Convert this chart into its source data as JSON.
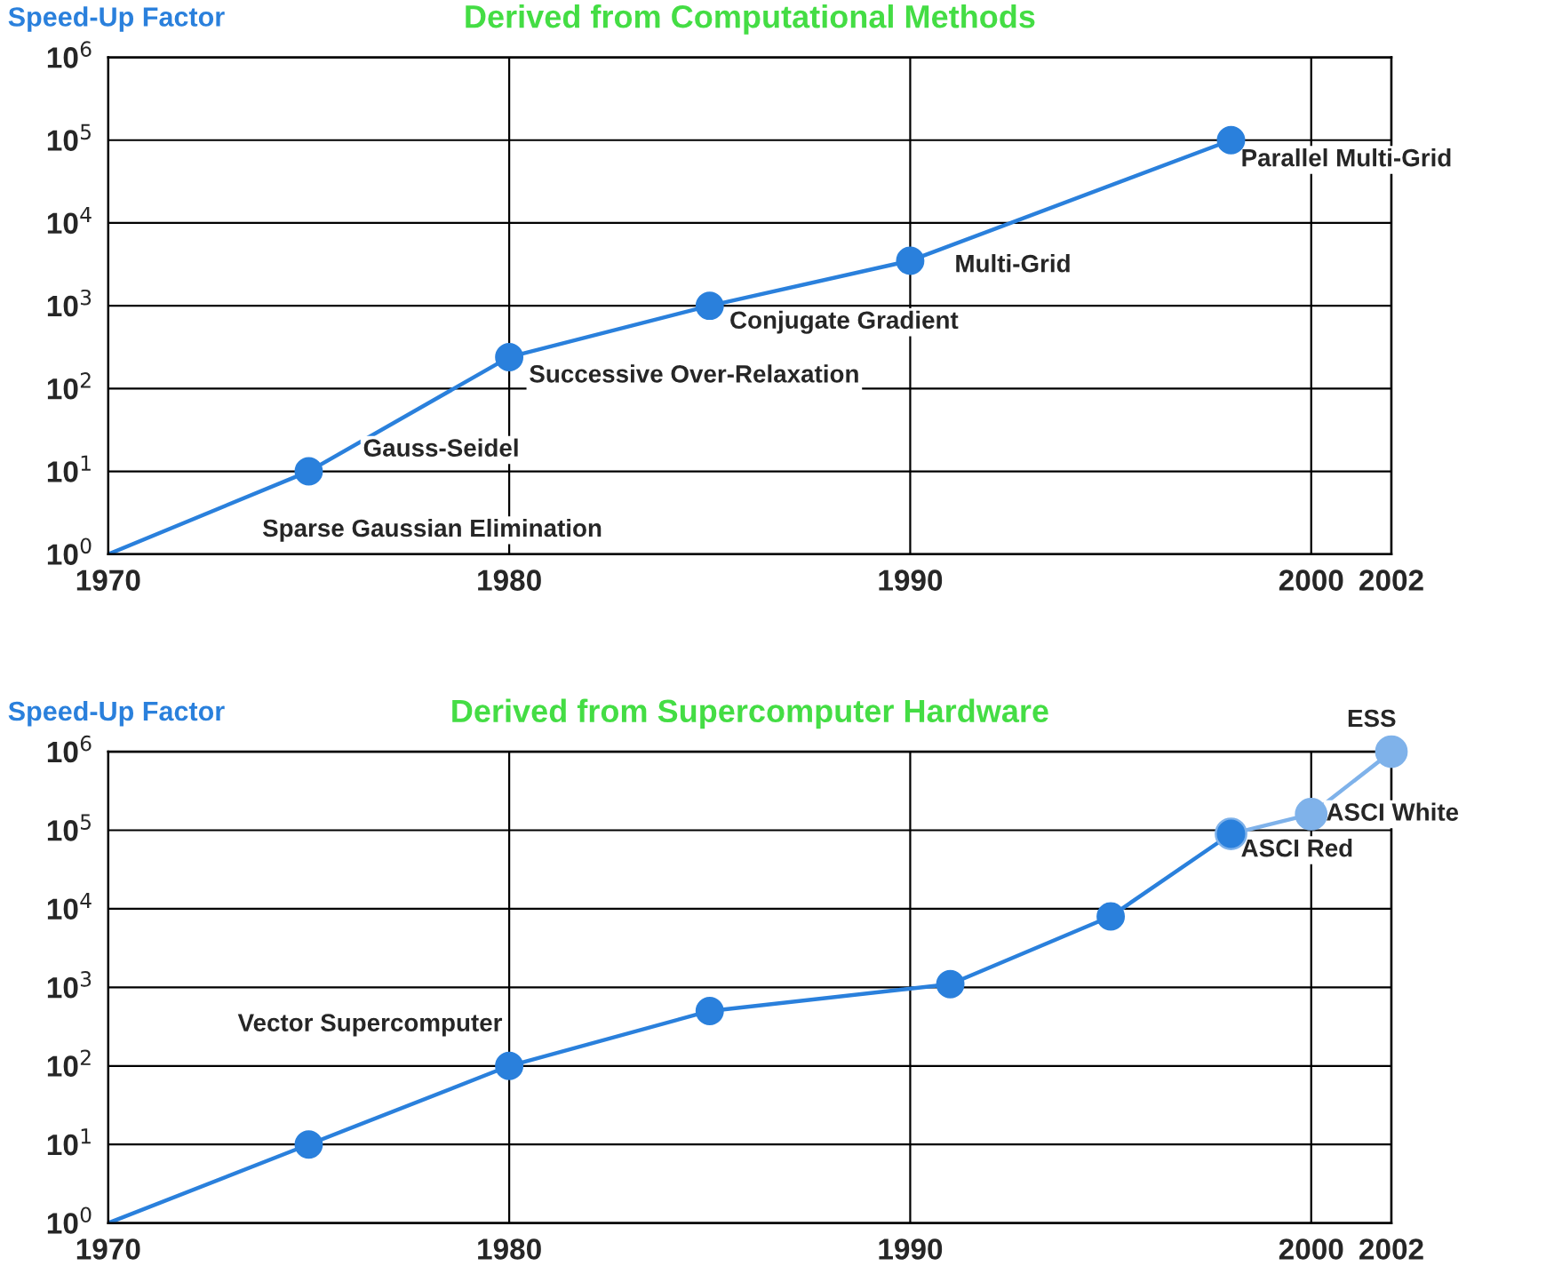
{
  "chart_data": [
    {
      "type": "line",
      "title": "Derived from Computational Methods",
      "ylabel": "Speed-Up Factor",
      "log": true,
      "grid": true,
      "xlim": [
        1970,
        2002
      ],
      "xticks": [
        1970,
        1980,
        1990,
        2000,
        2002
      ],
      "ylim": [
        1,
        1000000
      ],
      "yticks": [
        {
          "value": 1,
          "label": "10$^{0}$"
        },
        {
          "value": 10,
          "label": "10$^{1}$"
        },
        {
          "value": 100,
          "label": "10$^{2}$"
        },
        {
          "value": 1000,
          "label": "10$^{3}$"
        },
        {
          "value": 10000,
          "label": "10$^{4}$"
        },
        {
          "value": 100000,
          "label": "10$^{5}$"
        },
        {
          "value": 1000000,
          "label": "10$^{6}$"
        }
      ],
      "series": [
        {
          "color": "#2a80dc",
          "x": [
            1970,
            1975
          ],
          "values": [
            1,
            10
          ]
        },
        {
          "color": "#2a80dc",
          "marker": "circle",
          "x": [
            1975,
            1980,
            1985,
            1990,
            1998
          ],
          "values": [
            10,
            240,
            1000,
            3500,
            100000
          ]
        }
      ],
      "annotations": [
        "Sparse Gaussian Elimination",
        {
          "text": "Gauss-Seidel",
          "x": 1975,
          "y": 10
        },
        {
          "text": "Successive Over-Relaxation",
          "x": 1980,
          "y": 240
        },
        {
          "text": "Conjugate Gradient",
          "x": 1985,
          "y": 1000
        },
        {
          "text": "Multi-Grid",
          "x": 1990,
          "y": 3500
        },
        {
          "text": "Parallel Multi-Grid",
          "x": 1998,
          "y": 100000
        }
      ]
    },
    {
      "type": "line",
      "title": "Derived from Supercomputer Hardware",
      "ylabel": "Speed-Up Factor",
      "log": true,
      "grid": true,
      "xlim": [
        1970,
        2002
      ],
      "xticks": [
        1970,
        1980,
        1990,
        2000,
        2002
      ],
      "ylim": [
        1,
        1000000
      ],
      "yticks": [
        {
          "value": 1,
          "label": "10$^{0}$"
        },
        {
          "value": 10,
          "label": "10$^{1}$"
        },
        {
          "value": 100,
          "label": "10$^{2}$"
        },
        {
          "value": 1000,
          "label": "10$^{3}$"
        },
        {
          "value": 10000,
          "label": "10$^{4}$"
        },
        {
          "value": 100000,
          "label": "10$^{5}$"
        },
        {
          "value": 1000000,
          "label": "10$^{6}$"
        }
      ],
      "series": [
        {
          "color": "#2a80dc",
          "x": [
            1970,
            1975
          ],
          "values": [
            1,
            10
          ]
        },
        {
          "color": "#2a80dc",
          "marker": "circle",
          "x": [
            1975,
            1980,
            1985,
            1991,
            1995,
            1998
          ],
          "values": [
            10,
            100,
            500,
            1100,
            8000,
            90000
          ]
        },
        {
          "color": "#7fb2ea",
          "marker": "circle",
          "x": [
            1998,
            2000,
            2002
          ],
          "values": [
            90000,
            160000,
            1000000
          ]
        }
      ],
      "annotations": [
        {
          "text": "Vector Supercomputer",
          "x": 1980,
          "y": 100
        },
        {
          "text": "ASCI Red",
          "x": 1998,
          "y": 90000
        },
        {
          "text": "ASCI White",
          "x": 2000,
          "y": 160000
        },
        {
          "text": "ESS",
          "x": 2002,
          "y": 1000000
        }
      ]
    }
  ]
}
